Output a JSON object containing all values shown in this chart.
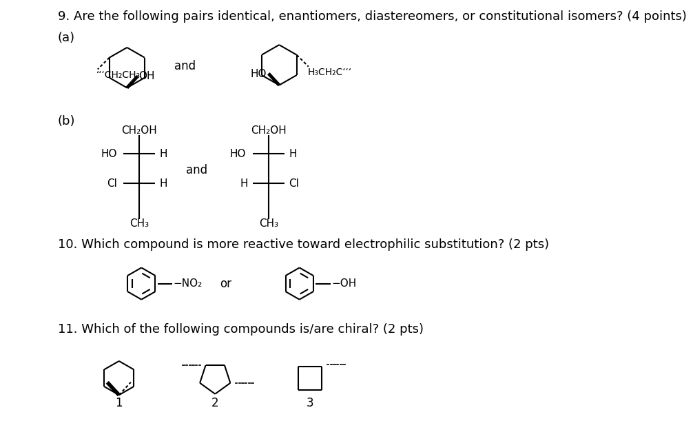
{
  "bg_color": "#ffffff",
  "text_color": "#000000",
  "q9_text": "9. Are the following pairs identical, enantiomers, diastereomers, or constitutional isomers? (4 points)",
  "q10_text": "10. Which compound is more reactive toward electrophilic substitution? (2 pts)",
  "q11_text": "11. Which of the following compounds is/are chiral? (2 pts)"
}
